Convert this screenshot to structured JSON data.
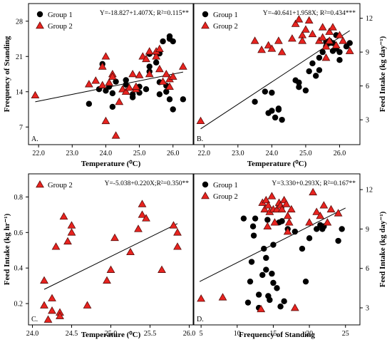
{
  "colors": {
    "group1": "#000000",
    "group2_fill": "#e8231f",
    "group2_stroke": "#5a0d0b",
    "axis": "#000000"
  },
  "chart_data": [
    {
      "panel": "A.",
      "type": "scatter",
      "xlabel": "Temperature (⁰C)",
      "ylabel": "Frequency of Standing",
      "y_side": "left",
      "equation": "Y=-18.827+1.407X; R²=0.115**",
      "xlim": [
        21.7,
        26.6
      ],
      "ylim": [
        3.5,
        31.5
      ],
      "xticks": [
        22,
        23,
        24,
        25,
        26
      ],
      "yticks": [
        7,
        14,
        21,
        28
      ],
      "legend": "top-left",
      "series": [
        {
          "name": "Group 1",
          "marker": "circle",
          "points": [
            [
              23.5,
              11.6
            ],
            [
              23.8,
              14.5
            ],
            [
              23.9,
              19.5
            ],
            [
              24.0,
              14.2
            ],
            [
              24.1,
              15.0
            ],
            [
              24.2,
              13.7
            ],
            [
              24.2,
              11.0
            ],
            [
              24.3,
              16.0
            ],
            [
              24.6,
              15.4
            ],
            [
              24.6,
              16.3
            ],
            [
              24.8,
              13.5
            ],
            [
              24.8,
              12.9
            ],
            [
              25.0,
              13.8
            ],
            [
              25.0,
              15.0
            ],
            [
              25.2,
              14.5
            ],
            [
              25.3,
              18.0
            ],
            [
              25.3,
              21.5
            ],
            [
              25.3,
              19.0
            ],
            [
              25.5,
              21.7
            ],
            [
              25.5,
              19.8
            ],
            [
              25.6,
              15.9
            ],
            [
              25.6,
              13.5
            ],
            [
              25.6,
              21.6
            ],
            [
              25.7,
              24.0
            ],
            [
              25.8,
              15.2
            ],
            [
              25.8,
              14.0
            ],
            [
              25.9,
              25.0
            ],
            [
              25.9,
              24.5
            ],
            [
              25.9,
              12.5
            ],
            [
              26.0,
              10.5
            ],
            [
              26.0,
              24.0
            ],
            [
              26.3,
              12.5
            ]
          ]
        },
        {
          "name": "Group 2",
          "marker": "triangle",
          "points": [
            [
              21.9,
              13.3
            ],
            [
              23.5,
              15.5
            ],
            [
              23.7,
              16.2
            ],
            [
              23.9,
              15.3
            ],
            [
              23.9,
              19.0
            ],
            [
              24.0,
              21.0
            ],
            [
              24.0,
              8.2
            ],
            [
              24.1,
              15.8
            ],
            [
              24.2,
              17.5
            ],
            [
              24.2,
              17.0
            ],
            [
              24.3,
              5.3
            ],
            [
              24.4,
              12.0
            ],
            [
              24.5,
              14.5
            ],
            [
              24.6,
              14.0
            ],
            [
              24.7,
              14.8
            ],
            [
              24.8,
              17.5
            ],
            [
              24.9,
              14.5
            ],
            [
              24.9,
              15.0
            ],
            [
              25.0,
              17.3
            ],
            [
              25.1,
              21.0
            ],
            [
              25.2,
              20.5
            ],
            [
              25.3,
              22.0
            ],
            [
              25.3,
              17.5
            ],
            [
              25.5,
              21.0
            ],
            [
              25.5,
              22.0
            ],
            [
              25.6,
              18.5
            ],
            [
              25.6,
              22.5
            ],
            [
              25.7,
              16.0
            ],
            [
              25.8,
              17.5
            ],
            [
              25.9,
              15.0
            ],
            [
              25.9,
              16.5
            ],
            [
              26.0,
              17.0
            ],
            [
              26.3,
              19.0
            ]
          ]
        }
      ],
      "fit": [
        [
          21.9,
          12.0
        ],
        [
          26.3,
          17.9
        ]
      ]
    },
    {
      "panel": "B.",
      "type": "scatter",
      "xlabel": "Temperature (⁰C)",
      "ylabel": "Feed Intake (kg day⁻¹)",
      "y_side": "right",
      "equation": "Y=-40.641+1.958X; R²=0.434***",
      "xlim": [
        21.7,
        26.6
      ],
      "ylim": [
        0.8,
        13.3
      ],
      "xticks": [
        22,
        23,
        24,
        25,
        26
      ],
      "yticks": [
        3,
        6,
        9,
        12
      ],
      "legend": "top-left",
      "series": [
        {
          "name": "Group 1",
          "marker": "circle",
          "points": [
            [
              23.5,
              4.6
            ],
            [
              23.8,
              5.5
            ],
            [
              23.9,
              3.6
            ],
            [
              24.0,
              5.4
            ],
            [
              24.0,
              3.8
            ],
            [
              24.1,
              3.2
            ],
            [
              24.2,
              4.0
            ],
            [
              24.2,
              3.9
            ],
            [
              24.3,
              3.0
            ],
            [
              24.7,
              6.5
            ],
            [
              24.8,
              5.9
            ],
            [
              24.8,
              6.3
            ],
            [
              25.0,
              5.6
            ],
            [
              25.1,
              7.3
            ],
            [
              25.2,
              8.0
            ],
            [
              25.3,
              6.9
            ],
            [
              25.4,
              7.4
            ],
            [
              25.4,
              8.5
            ],
            [
              25.5,
              9.0
            ],
            [
              25.6,
              9.5
            ],
            [
              25.6,
              9.9
            ],
            [
              25.7,
              10.0
            ],
            [
              25.7,
              9.8
            ],
            [
              25.8,
              9.1
            ],
            [
              25.8,
              9.8
            ],
            [
              25.9,
              9.3
            ],
            [
              25.9,
              10.5
            ],
            [
              26.0,
              9.0
            ],
            [
              26.0,
              8.3
            ],
            [
              26.2,
              9.5
            ],
            [
              26.3,
              9.8
            ]
          ]
        },
        {
          "name": "Group 2",
          "marker": "triangle",
          "points": [
            [
              21.9,
              2.9
            ],
            [
              23.5,
              10.0
            ],
            [
              23.7,
              9.2
            ],
            [
              23.9,
              9.6
            ],
            [
              24.0,
              9.3
            ],
            [
              24.2,
              10.0
            ],
            [
              24.3,
              9.0
            ],
            [
              24.6,
              10.2
            ],
            [
              24.7,
              11.5
            ],
            [
              24.8,
              11.9
            ],
            [
              24.9,
              10.5
            ],
            [
              24.9,
              10.0
            ],
            [
              25.0,
              11.0
            ],
            [
              25.1,
              11.8
            ],
            [
              25.2,
              10.6
            ],
            [
              25.4,
              10.0
            ],
            [
              25.5,
              11.2
            ],
            [
              25.5,
              10.3
            ],
            [
              25.6,
              9.5
            ],
            [
              25.6,
              8.5
            ],
            [
              25.7,
              10.8
            ],
            [
              25.7,
              10.0
            ],
            [
              25.8,
              11.2
            ],
            [
              25.9,
              9.6
            ],
            [
              26.0,
              10.5
            ],
            [
              26.1,
              10.0
            ],
            [
              26.3,
              9.1
            ]
          ]
        }
      ],
      "fit": [
        [
          21.9,
          2.2
        ],
        [
          26.3,
          10.9
        ]
      ]
    },
    {
      "panel": "C.",
      "type": "scatter",
      "xlabel": "Temperature (⁰C)",
      "ylabel": "Feed Intake (kg hr⁻¹)",
      "y_side": "left",
      "equation": "Y=-5.038+0.220X;R²=0.350**",
      "xlim": [
        23.95,
        26.05
      ],
      "ylim": [
        0.08,
        0.93
      ],
      "xticks": [
        24.0,
        24.5,
        25.0,
        25.5,
        26.0
      ],
      "ytick_labels": [
        "0.2",
        "0.4",
        "0.6",
        "0.8"
      ],
      "yticks": [
        0.2,
        0.4,
        0.6,
        0.8
      ],
      "legend": "top-left",
      "series": [
        {
          "name": "Group 2",
          "marker": "triangle",
          "points": [
            [
              24.15,
              0.19
            ],
            [
              24.15,
              0.33
            ],
            [
              24.2,
              0.11
            ],
            [
              24.25,
              0.23
            ],
            [
              24.25,
              0.16
            ],
            [
              24.3,
              0.52
            ],
            [
              24.35,
              0.15
            ],
            [
              24.35,
              0.13
            ],
            [
              24.4,
              0.69
            ],
            [
              24.45,
              0.55
            ],
            [
              24.5,
              0.6
            ],
            [
              24.5,
              0.64
            ],
            [
              24.7,
              0.19
            ],
            [
              24.95,
              0.33
            ],
            [
              25.0,
              0.39
            ],
            [
              25.05,
              0.57
            ],
            [
              25.25,
              0.49
            ],
            [
              25.35,
              0.62
            ],
            [
              25.4,
              0.7
            ],
            [
              25.45,
              0.68
            ],
            [
              25.4,
              0.76
            ],
            [
              25.65,
              0.39
            ],
            [
              25.8,
              0.64
            ],
            [
              25.85,
              0.6
            ],
            [
              25.85,
              0.52
            ]
          ]
        }
      ],
      "fit": [
        [
          24.15,
          0.28
        ],
        [
          25.85,
          0.65
        ]
      ]
    },
    {
      "panel": "D.",
      "type": "scatter",
      "xlabel": "Frequency of Standing",
      "ylabel": "Feed Intake (kg day⁻¹)",
      "y_side": "right",
      "equation": "Y=3.330+0.293X; R²=0.167**",
      "xlim": [
        4,
        27
      ],
      "ylim": [
        1.7,
        13.2
      ],
      "xticks": [
        5,
        10,
        15,
        20,
        25
      ],
      "yticks": [
        3,
        6,
        9,
        12
      ],
      "legend": "top-left",
      "series": [
        {
          "name": "Group 1",
          "marker": "circle",
          "points": [
            [
              10.9,
              9.8
            ],
            [
              11.5,
              3.4
            ],
            [
              11.8,
              5.0
            ],
            [
              12.0,
              6.5
            ],
            [
              12.2,
              9.2
            ],
            [
              12.3,
              8.5
            ],
            [
              12.5,
              9.8
            ],
            [
              13.0,
              3.0
            ],
            [
              13.0,
              4.0
            ],
            [
              13.5,
              5.5
            ],
            [
              13.7,
              7.5
            ],
            [
              14.0,
              5.9
            ],
            [
              14.0,
              6.8
            ],
            [
              14.2,
              9.7
            ],
            [
              14.3,
              3.9
            ],
            [
              14.5,
              3.6
            ],
            [
              14.8,
              5.6
            ],
            [
              15.0,
              4.9
            ],
            [
              15.0,
              7.8
            ],
            [
              15.5,
              4.5
            ],
            [
              15.8,
              9.5
            ],
            [
              16.0,
              3.1
            ],
            [
              16.2,
              9.6
            ],
            [
              16.5,
              3.5
            ],
            [
              17.0,
              9.0
            ],
            [
              18.0,
              8.8
            ],
            [
              19.0,
              7.5
            ],
            [
              19.5,
              5.0
            ],
            [
              20.0,
              8.3
            ],
            [
              21.0,
              9.0
            ],
            [
              21.5,
              9.3
            ],
            [
              21.8,
              9.0
            ],
            [
              22.0,
              9.2
            ],
            [
              24.0,
              8.1
            ],
            [
              24.5,
              9.0
            ]
          ]
        },
        {
          "name": "Group 2",
          "marker": "triangle",
          "points": [
            [
              5.0,
              3.7
            ],
            [
              8.0,
              3.8
            ],
            [
              13.3,
              2.9
            ],
            [
              13.5,
              11.0
            ],
            [
              13.8,
              10.5
            ],
            [
              14.0,
              11.2
            ],
            [
              14.2,
              9.2
            ],
            [
              14.3,
              10.8
            ],
            [
              14.5,
              10.3
            ],
            [
              14.8,
              11.5
            ],
            [
              15.0,
              10.5
            ],
            [
              15.2,
              9.5
            ],
            [
              15.5,
              10.5
            ],
            [
              15.8,
              11.0
            ],
            [
              16.0,
              10.8
            ],
            [
              16.2,
              10.5
            ],
            [
              16.5,
              11.2
            ],
            [
              16.8,
              10.9
            ],
            [
              17.0,
              10.0
            ],
            [
              17.0,
              8.8
            ],
            [
              17.2,
              9.5
            ],
            [
              17.5,
              10.5
            ],
            [
              18.0,
              3.0
            ],
            [
              20.0,
              9.5
            ],
            [
              20.5,
              11.8
            ],
            [
              21.0,
              10.3
            ],
            [
              21.5,
              10.0
            ],
            [
              22.0,
              10.8
            ],
            [
              22.5,
              9.5
            ],
            [
              23.0,
              10.5
            ],
            [
              24.0,
              10.2
            ]
          ]
        }
      ],
      "fit": [
        [
          4.8,
          5.0
        ],
        [
          25.0,
          10.6
        ]
      ]
    }
  ]
}
